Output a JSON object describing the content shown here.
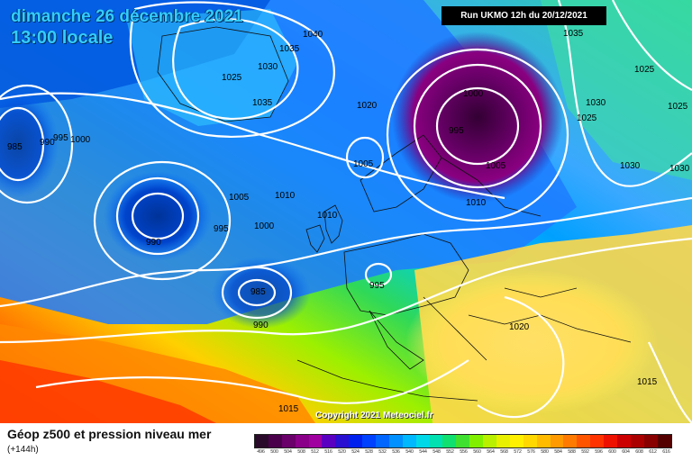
{
  "header": {
    "date": "dimanche 26 décembre 2021",
    "time": "13:00 locale",
    "run": "Run UKMO 12h du 20/12/2021"
  },
  "copyright": "Copyright 2021 Meteociel.fr",
  "legend": {
    "title": "Géop z500 et pression niveau mer",
    "offset": "(+144h)",
    "scale_values": [
      "496",
      "500",
      "504",
      "508",
      "512",
      "516",
      "520",
      "524",
      "528",
      "532",
      "536",
      "540",
      "544",
      "548",
      "552",
      "556",
      "560",
      "564",
      "568",
      "572",
      "576",
      "580",
      "584",
      "588",
      "592",
      "596",
      "600",
      "604",
      "608",
      "612",
      "616"
    ],
    "scale_colors": [
      "#2a0a2a",
      "#4a004a",
      "#6a006a",
      "#8a0088",
      "#a000a0",
      "#5a00c0",
      "#2a10d0",
      "#0020ee",
      "#0040ff",
      "#0066ff",
      "#0090ff",
      "#00b8ff",
      "#00d8e8",
      "#00e0b0",
      "#10e070",
      "#40e030",
      "#80f000",
      "#b8f000",
      "#e8f000",
      "#fff000",
      "#ffd800",
      "#ffbb00",
      "#ff9a00",
      "#ff7a00",
      "#ff5500",
      "#ff3300",
      "#ee1100",
      "#cc0000",
      "#aa0000",
      "#880000",
      "#550000"
    ]
  },
  "isobar_labels": [
    "1040",
    "1035",
    "1030",
    "1025",
    "1035",
    "1035",
    "1025",
    "1030",
    "1025",
    "1025",
    "1030",
    "1030",
    "1020",
    "1000",
    "995",
    "1005",
    "1005",
    "1010",
    "985",
    "990",
    "995",
    "1000",
    "1005",
    "1010",
    "995",
    "1000",
    "1010",
    "990",
    "985",
    "990",
    "995",
    "1020",
    "1015",
    "1015"
  ]
}
